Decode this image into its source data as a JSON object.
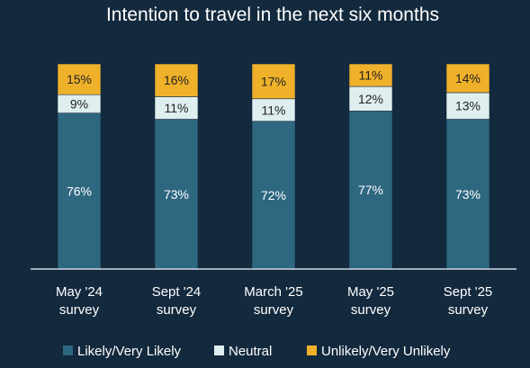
{
  "chart_data": {
    "type": "bar",
    "stacked": true,
    "title": "Intention to travel in the next six months",
    "categories": [
      [
        "May '24",
        "survey"
      ],
      [
        "Sept '24",
        "survey"
      ],
      [
        "March '25",
        "survey"
      ],
      [
        "May '25",
        "survey"
      ],
      [
        "Sept '25",
        "survey"
      ]
    ],
    "series": [
      {
        "name": "Likely/Very Likely",
        "values": [
          76,
          73,
          72,
          77,
          73
        ],
        "color": "#2e6780",
        "label_color": "#ffffff"
      },
      {
        "name": "Neutral",
        "values": [
          9,
          11,
          11,
          12,
          13
        ],
        "color": "#dfeeee",
        "label_color": "#222222"
      },
      {
        "name": "Unlikely/Very Unlikely",
        "values": [
          15,
          16,
          17,
          11,
          14
        ],
        "color": "#f0b12a",
        "label_color": "#222222"
      }
    ],
    "value_suffix": "%",
    "ylim": [
      0,
      100
    ],
    "grid": false,
    "legend_position": "bottom"
  }
}
